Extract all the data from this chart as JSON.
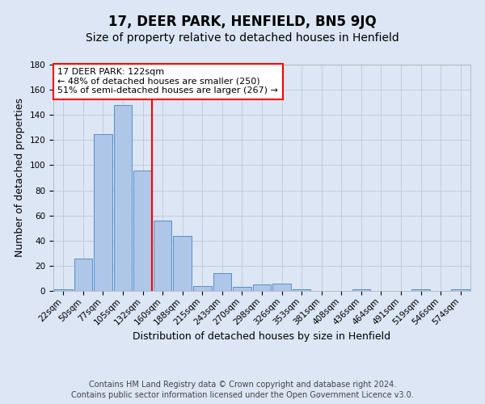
{
  "title": "17, DEER PARK, HENFIELD, BN5 9JQ",
  "subtitle": "Size of property relative to detached houses in Henfield",
  "xlabel": "Distribution of detached houses by size in Henfield",
  "ylabel": "Number of detached properties",
  "footnote1": "Contains HM Land Registry data © Crown copyright and database right 2024.",
  "footnote2": "Contains public sector information licensed under the Open Government Licence v3.0.",
  "bar_labels": [
    "22sqm",
    "50sqm",
    "77sqm",
    "105sqm",
    "132sqm",
    "160sqm",
    "188sqm",
    "215sqm",
    "243sqm",
    "270sqm",
    "298sqm",
    "326sqm",
    "353sqm",
    "381sqm",
    "408sqm",
    "436sqm",
    "464sqm",
    "491sqm",
    "519sqm",
    "546sqm",
    "574sqm"
  ],
  "bar_values": [
    1,
    26,
    125,
    148,
    96,
    56,
    44,
    4,
    14,
    3,
    5,
    6,
    1,
    0,
    0,
    1,
    0,
    0,
    1,
    0,
    1
  ],
  "bar_color": "#aec6e8",
  "bar_edge_color": "#5590c8",
  "background_color": "#dce6f5",
  "red_line_x": 4.0,
  "annotation_text": "17 DEER PARK: 122sqm\n← 48% of detached houses are smaller (250)\n51% of semi-detached houses are larger (267) →",
  "annotation_box_color": "white",
  "annotation_box_edge_color": "red",
  "ylim": [
    0,
    180
  ],
  "yticks": [
    0,
    20,
    40,
    60,
    80,
    100,
    120,
    140,
    160,
    180
  ],
  "grid_color": "#c0c8d8",
  "title_fontsize": 12,
  "subtitle_fontsize": 10,
  "axis_label_fontsize": 9,
  "tick_fontsize": 7.5,
  "footnote_fontsize": 7
}
